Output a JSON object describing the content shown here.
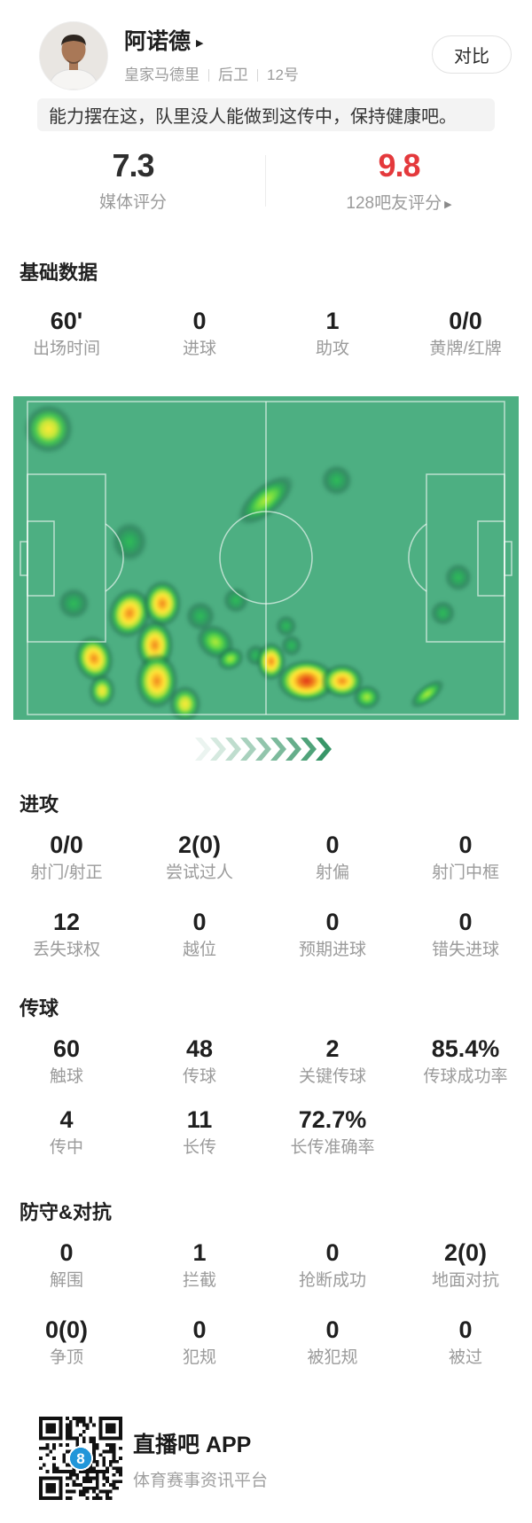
{
  "header": {
    "player_name": "阿诺德",
    "team": "皇家马德里",
    "position": "后卫",
    "number": "12号",
    "compare_button": "对比"
  },
  "quote": "能力摆在这，队里没人能做到这传中，保持健康吧。",
  "ratings": {
    "media": {
      "value": "7.3",
      "label": "媒体评分",
      "color": "#2e2e2e"
    },
    "fans": {
      "value": "9.8",
      "label": "128吧友评分",
      "color": "#e4393c"
    }
  },
  "sections": [
    {
      "id": "basic",
      "title": "基础数据",
      "rows": [
        [
          {
            "v": "60'",
            "l": "出场时间"
          },
          {
            "v": "0",
            "l": "进球"
          },
          {
            "v": "1",
            "l": "助攻"
          },
          {
            "v": "0/0",
            "l": "黄牌/红牌"
          }
        ]
      ]
    },
    {
      "id": "attack",
      "title": "进攻",
      "rows": [
        [
          {
            "v": "0/0",
            "l": "射门/射正"
          },
          {
            "v": "2(0)",
            "l": "尝试过人"
          },
          {
            "v": "0",
            "l": "射偏"
          },
          {
            "v": "0",
            "l": "射门中框"
          }
        ],
        [
          {
            "v": "12",
            "l": "丢失球权"
          },
          {
            "v": "0",
            "l": "越位"
          },
          {
            "v": "0",
            "l": "预期进球"
          },
          {
            "v": "0",
            "l": "错失进球"
          }
        ]
      ]
    },
    {
      "id": "pass",
      "title": "传球",
      "rows": [
        [
          {
            "v": "60",
            "l": "触球"
          },
          {
            "v": "48",
            "l": "传球"
          },
          {
            "v": "2",
            "l": "关键传球"
          },
          {
            "v": "85.4%",
            "l": "传球成功率"
          }
        ],
        [
          {
            "v": "4",
            "l": "传中"
          },
          {
            "v": "11",
            "l": "长传"
          },
          {
            "v": "72.7%",
            "l": "长传准确率"
          }
        ]
      ]
    },
    {
      "id": "defense",
      "title": "防守&对抗",
      "rows": [
        [
          {
            "v": "0",
            "l": "解围"
          },
          {
            "v": "1",
            "l": "拦截"
          },
          {
            "v": "0",
            "l": "抢断成功"
          },
          {
            "v": "2(0)",
            "l": "地面对抗"
          }
        ],
        [
          {
            "v": "0(0)",
            "l": "争顶"
          },
          {
            "v": "0",
            "l": "犯规"
          },
          {
            "v": "0",
            "l": "被犯规"
          },
          {
            "v": "0",
            "l": "被过"
          }
        ]
      ]
    },
    {
      "id": "footer-spacer",
      "title": "",
      "rows": []
    }
  ],
  "heatmap": {
    "type": "position-heatmap",
    "pitch_color": "#4daf82",
    "line_color": "rgba(255,255,255,0.62)",
    "points": [
      [
        7,
        10,
        24,
        24,
        0,
        3
      ],
      [
        23,
        45,
        18,
        20,
        0,
        1
      ],
      [
        50,
        32,
        34,
        15,
        -40,
        2
      ],
      [
        64,
        26,
        16,
        16,
        0,
        1
      ],
      [
        12,
        64,
        16,
        16,
        0,
        1
      ],
      [
        44,
        63,
        13,
        13,
        0,
        1
      ],
      [
        37,
        68,
        15,
        15,
        0,
        1
      ],
      [
        23,
        67,
        20,
        24,
        20,
        4
      ],
      [
        29.5,
        64,
        18,
        22,
        0,
        4
      ],
      [
        28,
        77,
        18,
        24,
        0,
        4
      ],
      [
        28.5,
        88,
        20,
        26,
        0,
        4
      ],
      [
        34,
        95,
        16,
        18,
        0,
        3
      ],
      [
        16,
        81,
        18,
        22,
        -15,
        4
      ],
      [
        17.5,
        91,
        13,
        16,
        0,
        3
      ],
      [
        40,
        76,
        20,
        16,
        35,
        2
      ],
      [
        43,
        81,
        14,
        11,
        -25,
        2
      ],
      [
        48,
        80,
        11,
        11,
        0,
        1
      ],
      [
        51,
        82,
        14,
        18,
        0,
        4
      ],
      [
        55,
        77,
        11,
        11,
        0,
        1
      ],
      [
        58,
        88,
        28,
        20,
        0,
        5
      ],
      [
        65,
        88,
        20,
        16,
        0,
        4
      ],
      [
        70,
        93,
        14,
        12,
        0,
        2
      ],
      [
        88,
        56,
        14,
        14,
        0,
        1
      ],
      [
        85,
        67,
        13,
        13,
        0,
        1
      ],
      [
        82,
        92,
        20,
        9,
        -38,
        2
      ],
      [
        54,
        71,
        11,
        11,
        0,
        1
      ]
    ]
  },
  "icons": {
    "name_arrow": "▶",
    "fans_arrow": "▶",
    "qr": "qr-code",
    "chevrons": "chevron-right-arrows"
  },
  "footer": {
    "app_name": "直播吧 APP",
    "tagline": "体育赛事资讯平台"
  }
}
